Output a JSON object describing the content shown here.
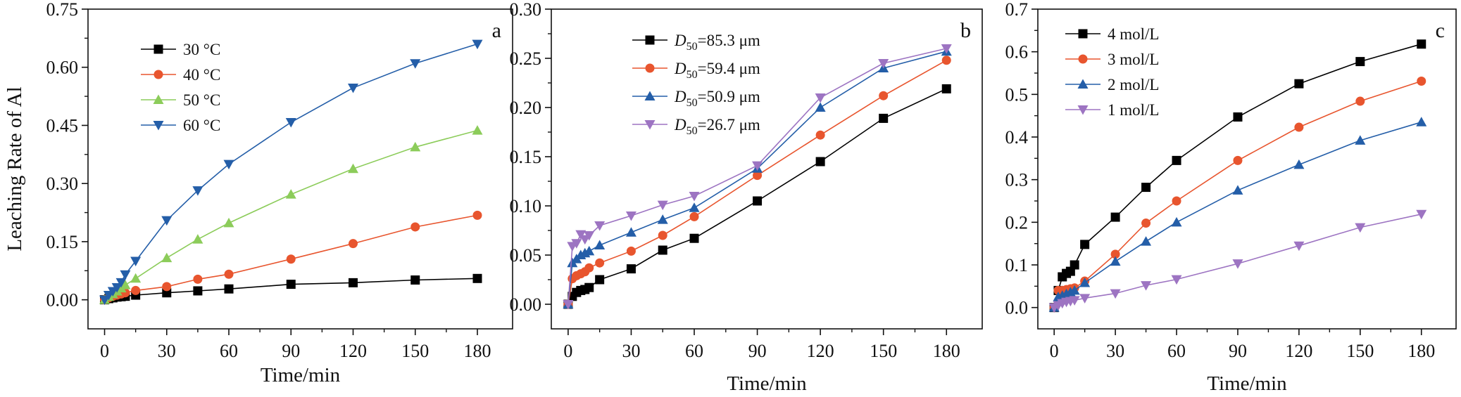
{
  "chart_data": [
    {
      "type": "line",
      "panel_label": "a",
      "xlabel": "Time/min",
      "ylabel": "Leaching Rate of Al",
      "xlim": [
        -8,
        197
      ],
      "ylim": [
        -0.075,
        0.75
      ],
      "xticks": [
        0,
        30,
        60,
        90,
        120,
        150,
        180
      ],
      "yticks": [
        0.0,
        0.15,
        0.3,
        0.45,
        0.6,
        0.75
      ],
      "ytick_labels": [
        "0.00",
        "0.15",
        "0.30",
        "0.45",
        "0.60",
        "0.75"
      ],
      "legend": "top-left",
      "series": [
        {
          "name": "30 °C",
          "color": "#000000",
          "marker": "square",
          "x": [
            0,
            2,
            4,
            6,
            8,
            10,
            15,
            30,
            45,
            60,
            90,
            120,
            150,
            180
          ],
          "y": [
            0.0,
            0.003,
            0.005,
            0.007,
            0.008,
            0.009,
            0.012,
            0.018,
            0.023,
            0.028,
            0.04,
            0.044,
            0.051,
            0.055
          ]
        },
        {
          "name": "40 °C",
          "color": "#e8552e",
          "marker": "circle",
          "x": [
            0,
            2,
            4,
            6,
            8,
            10,
            15,
            30,
            45,
            60,
            90,
            120,
            150,
            180
          ],
          "y": [
            0.0,
            0.005,
            0.009,
            0.012,
            0.015,
            0.018,
            0.024,
            0.034,
            0.053,
            0.066,
            0.105,
            0.145,
            0.188,
            0.218
          ]
        },
        {
          "name": "50 °C",
          "color": "#8ccc5a",
          "marker": "triangle-up",
          "x": [
            0,
            2,
            4,
            6,
            8,
            10,
            15,
            30,
            45,
            60,
            90,
            120,
            150,
            180
          ],
          "y": [
            0.0,
            0.008,
            0.015,
            0.022,
            0.03,
            0.038,
            0.055,
            0.108,
            0.156,
            0.198,
            0.272,
            0.338,
            0.394,
            0.437
          ]
        },
        {
          "name": "60 °C",
          "color": "#245ea8",
          "marker": "triangle-down",
          "x": [
            0,
            2,
            4,
            6,
            8,
            10,
            15,
            30,
            45,
            60,
            90,
            120,
            150,
            180
          ],
          "y": [
            0.0,
            0.012,
            0.022,
            0.032,
            0.045,
            0.065,
            0.1,
            0.205,
            0.282,
            0.35,
            0.458,
            0.547,
            0.61,
            0.66
          ]
        }
      ]
    },
    {
      "type": "line",
      "panel_label": "b",
      "xlabel": "Time/min",
      "ylabel": "",
      "xlim": [
        -8,
        197
      ],
      "ylim": [
        -0.025,
        0.3
      ],
      "xticks": [
        0,
        30,
        60,
        90,
        120,
        150,
        180
      ],
      "yticks": [
        0.0,
        0.05,
        0.1,
        0.15,
        0.2,
        0.25,
        0.3
      ],
      "ytick_labels": [
        "0.00",
        "0.05",
        "0.10",
        "0.15",
        "0.20",
        "0.25",
        "0.30"
      ],
      "legend": "top-left",
      "series": [
        {
          "name_prefix": "D",
          "name_sub": "50",
          "name_suffix": "=85.3 μm",
          "color": "#000000",
          "marker": "square",
          "x": [
            0,
            2,
            4,
            6,
            8,
            10,
            15,
            30,
            45,
            60,
            90,
            120,
            150,
            180
          ],
          "y": [
            0.0,
            0.008,
            0.012,
            0.014,
            0.015,
            0.017,
            0.025,
            0.036,
            0.055,
            0.067,
            0.105,
            0.145,
            0.189,
            0.219
          ]
        },
        {
          "name_prefix": "D",
          "name_sub": "50",
          "name_suffix": "=59.4 μm",
          "color": "#e8552e",
          "marker": "circle",
          "x": [
            0,
            2,
            4,
            6,
            8,
            10,
            15,
            30,
            45,
            60,
            90,
            120,
            150,
            180
          ],
          "y": [
            0.0,
            0.026,
            0.029,
            0.031,
            0.033,
            0.037,
            0.042,
            0.054,
            0.07,
            0.089,
            0.131,
            0.172,
            0.212,
            0.248
          ]
        },
        {
          "name_prefix": "D",
          "name_sub": "50",
          "name_suffix": "=50.9 μm",
          "color": "#245ea8",
          "marker": "triangle-up",
          "x": [
            0,
            2,
            4,
            6,
            8,
            10,
            15,
            30,
            45,
            60,
            90,
            120,
            150,
            180
          ],
          "y": [
            0.0,
            0.042,
            0.046,
            0.05,
            0.052,
            0.054,
            0.06,
            0.073,
            0.086,
            0.098,
            0.138,
            0.2,
            0.24,
            0.257
          ]
        },
        {
          "name_prefix": "D",
          "name_sub": "50",
          "name_suffix": "=26.7 μm",
          "color": "#9d74c2",
          "marker": "triangle-down",
          "x": [
            0,
            2,
            4,
            6,
            8,
            10,
            15,
            30,
            45,
            60,
            90,
            120,
            150,
            180
          ],
          "y": [
            0.0,
            0.059,
            0.062,
            0.071,
            0.066,
            0.07,
            0.08,
            0.09,
            0.101,
            0.11,
            0.141,
            0.21,
            0.245,
            0.26
          ]
        }
      ]
    },
    {
      "type": "line",
      "panel_label": "c",
      "xlabel": "Time/min",
      "ylabel": "",
      "xlim": [
        -8,
        197
      ],
      "ylim": [
        -0.05,
        0.7
      ],
      "xticks": [
        0,
        30,
        60,
        90,
        120,
        150,
        180
      ],
      "yticks": [
        0.0,
        0.1,
        0.2,
        0.3,
        0.4,
        0.5,
        0.6,
        0.7
      ],
      "ytick_labels": [
        "0.0",
        "0.1",
        "0.2",
        "0.3",
        "0.4",
        "0.5",
        "0.6",
        "0.7"
      ],
      "legend": "top-left",
      "series": [
        {
          "name": "4 mol/L",
          "color": "#000000",
          "marker": "square",
          "x": [
            0,
            2,
            4,
            6,
            8,
            10,
            15,
            30,
            45,
            60,
            90,
            120,
            150,
            180
          ],
          "y": [
            0.0,
            0.04,
            0.072,
            0.08,
            0.085,
            0.1,
            0.148,
            0.212,
            0.282,
            0.345,
            0.447,
            0.525,
            0.577,
            0.618
          ]
        },
        {
          "name": "3 mol/L",
          "color": "#e8552e",
          "marker": "circle",
          "x": [
            0,
            2,
            4,
            6,
            8,
            10,
            15,
            30,
            45,
            60,
            90,
            120,
            150,
            180
          ],
          "y": [
            0.0,
            0.04,
            0.04,
            0.042,
            0.044,
            0.046,
            0.062,
            0.125,
            0.198,
            0.25,
            0.345,
            0.423,
            0.484,
            0.531
          ]
        },
        {
          "name": "2 mol/L",
          "color": "#245ea8",
          "marker": "triangle-up",
          "x": [
            0,
            2,
            4,
            6,
            8,
            10,
            15,
            30,
            45,
            60,
            90,
            120,
            150,
            180
          ],
          "y": [
            0.0,
            0.025,
            0.028,
            0.032,
            0.036,
            0.04,
            0.058,
            0.108,
            0.155,
            0.2,
            0.275,
            0.335,
            0.392,
            0.435
          ]
        },
        {
          "name": "1 mol/L",
          "color": "#9d74c2",
          "marker": "triangle-down",
          "x": [
            0,
            2,
            4,
            6,
            8,
            10,
            15,
            30,
            45,
            60,
            90,
            120,
            150,
            180
          ],
          "y": [
            0.0,
            0.005,
            0.01,
            0.013,
            0.015,
            0.017,
            0.022,
            0.033,
            0.052,
            0.066,
            0.103,
            0.145,
            0.188,
            0.219
          ]
        }
      ]
    }
  ]
}
